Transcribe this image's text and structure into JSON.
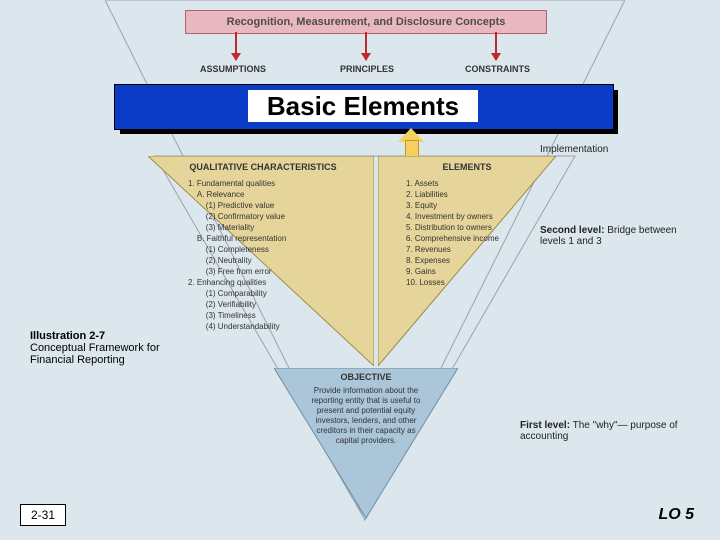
{
  "colors": {
    "page_bg": "#dce6ed",
    "concept_fill": "#e9b7bf",
    "concept_border": "#b0616e",
    "arrow_red": "#c1272d",
    "banner_fill": "#0a3cc8",
    "banner_shadow": "#000000",
    "up_arrow_fill": "#f7cf5a",
    "up_arrow_border": "#b49a3e",
    "panel_tan_fill": "#e6d59a",
    "panel_tan_border": "#9c8a46",
    "panel_blue_fill": "#aac6d8",
    "panel_blue_border": "#6d8fa4",
    "text": "#333333"
  },
  "concepts_header": "Recognition, Measurement, and Disclosure Concepts",
  "labels": {
    "assumptions": "ASSUMPTIONS",
    "principles": "PRINCIPLES",
    "constraints": "CONSTRAINTS"
  },
  "banner": "Basic Elements",
  "level3": {
    "line1": "Implementation"
  },
  "qualitative": {
    "title": "QUALITATIVE CHARACTERISTICS",
    "lines": [
      "1. Fundamental qualities",
      "    A. Relevance",
      "        (1) Predictive value",
      "        (2) Confirmatory value",
      "        (3) Materiality",
      "    B. Faithful representation",
      "        (1) Completeness",
      "        (2) Neutrality",
      "        (3) Free from error",
      "2. Enhancing qualities",
      "        (1) Comparability",
      "        (2) Verifiability",
      "        (3) Timeliness",
      "        (4) Understandability"
    ]
  },
  "elements": {
    "title": "ELEMENTS",
    "lines": [
      "1. Assets",
      "2. Liabilities",
      "3. Equity",
      "4. Investment by owners",
      "5. Distribution to owners",
      "6. Comprehensive income",
      "7. Revenues",
      "8. Expenses",
      "9. Gains",
      "10. Losses"
    ]
  },
  "level2": {
    "bold": "Second level:",
    "rest": "  Bridge between levels 1 and 3"
  },
  "objective": {
    "title": "OBJECTIVE",
    "text": "Provide information about the reporting entity that is useful to present and potential equity investors, lenders, and other creditors in their capacity as capital providers."
  },
  "level1": {
    "bold": "First level:",
    "rest": "  The \"why\"— purpose of accounting"
  },
  "caption": {
    "title": "Illustration 2-7",
    "line1": "Conceptual Framework for",
    "line2": "Financial Reporting"
  },
  "page_number": "2-31",
  "lo": "LO 5",
  "chart_meta": {
    "type": "infographic-inverted-triangle",
    "panels": [
      {
        "name": "qualitative",
        "shape": "right-triangle",
        "fill": "#e6d59a",
        "border": "#9c8a46"
      },
      {
        "name": "elements",
        "shape": "right-triangle",
        "fill": "#e6d59a",
        "border": "#9c8a46"
      },
      {
        "name": "objective",
        "shape": "triangle",
        "fill": "#aac6d8",
        "border": "#6d8fa4"
      }
    ],
    "fontsizes": {
      "panel_title": 9,
      "panel_body": 8,
      "banner": 26,
      "side_labels": 10,
      "caption": 11,
      "footer": 12,
      "lo": 16
    }
  }
}
